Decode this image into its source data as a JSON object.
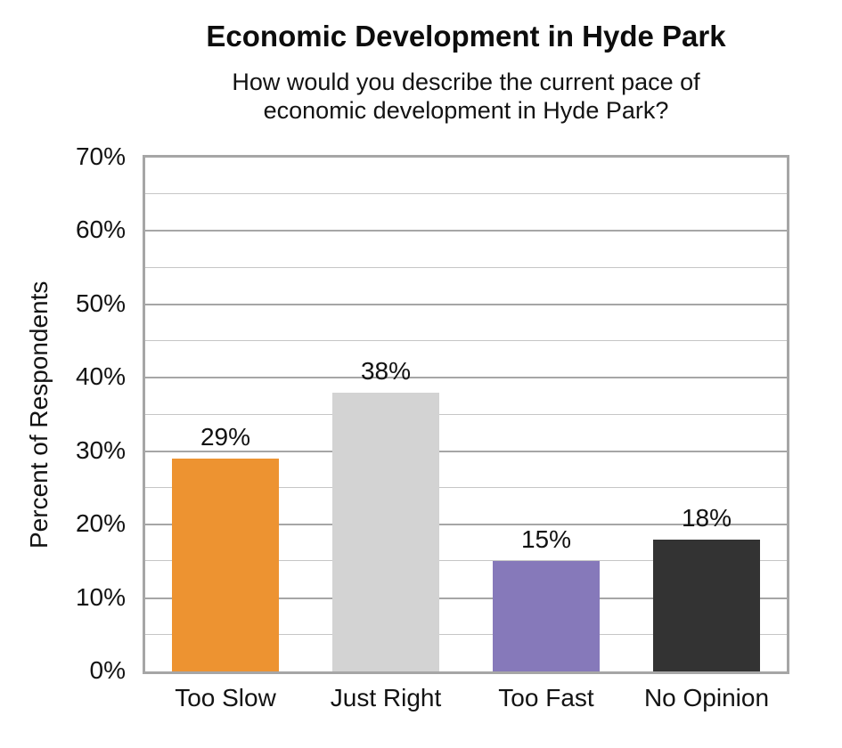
{
  "chart_data": {
    "type": "bar",
    "title": "Economic Development in Hyde Park",
    "subtitle": "How would you describe the current pace of economic development in Hyde Park?",
    "subtitle_lines": [
      "How would you describe the current pace of",
      "economic development in Hyde Park?"
    ],
    "categories": [
      "Too Slow",
      "Just Right",
      "Too Fast",
      "No Opinion"
    ],
    "values": [
      29,
      38,
      15,
      18
    ],
    "data_labels": [
      "29%",
      "38%",
      "15%",
      "18%"
    ],
    "bar_colors": [
      "#ED9331",
      "#D3D3D3",
      "#8679BA",
      "#333333"
    ],
    "xlabel": "",
    "ylabel": "Percent of Respondents",
    "ylim": [
      0,
      70
    ],
    "major_tick_step": 10,
    "minor_gridline_step": 5,
    "y_tick_labels": [
      "0%",
      "10%",
      "20%",
      "30%",
      "40%",
      "50%",
      "60%",
      "70%"
    ],
    "grid": "horizontal major and minor gridlines, gray",
    "legend_position": "none",
    "colors": {
      "plot_border": "#A6A6A6",
      "gridline_major": "#A6A6A6",
      "gridline_minor": "#C6C6C6",
      "text": "#111111",
      "background": "#FFFFFF"
    }
  }
}
